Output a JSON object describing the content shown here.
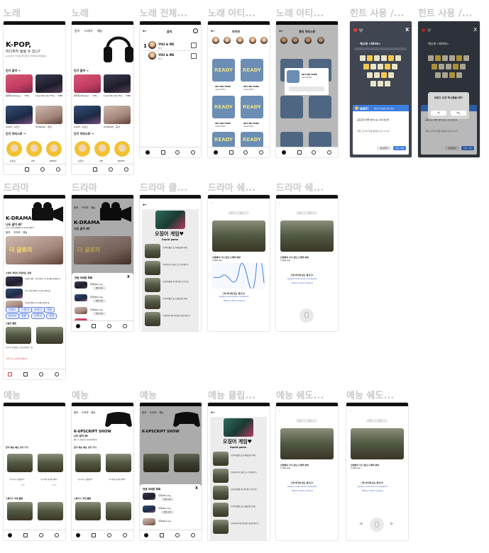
{
  "labels": {
    "r1": [
      "노래",
      "노래",
      "노래 전체...",
      "노래 아티...",
      "노래 아티...",
      "힌트 사용 /...",
      "힌트 사용 /..."
    ],
    "r2": [
      "드라마",
      "드라마",
      "드라마 클...",
      "드라마 쉐...",
      "드라마 쉐..."
    ],
    "r3": [
      "예능",
      "예능",
      "예능",
      "예능 클립...",
      "예능 쉐도...",
      "예능 쉐도..."
    ]
  },
  "nav": {
    "music": "음악",
    "drama": "드라마",
    "variety": "예능"
  },
  "music_home": {
    "title": "K-POP,",
    "subtitle": "어디까지 들을 수 있니?",
    "hint": "► K-POP 가사를 들으면서 한국어를 배워봐요",
    "section_songs": "인기 음악 →",
    "songs": [
      "알러지(Allergy) - 「IVE」",
      "Love Me Like This - 「NMIXX」",
      "GODS - 뉴진스",
      "STORAGE - 준비"
    ],
    "section_artists": "인기 아티스트 →",
    "artists": [
      "뉴진스",
      "IVE",
      "NMIXX"
    ]
  },
  "song_list": {
    "header": "음악",
    "items": [
      {
        "rank": "1",
        "title": "YOU & ME",
        "artist": "제니"
      },
      {
        "rank": "",
        "title": "YOU & ME",
        "artist": "제니"
      }
    ]
  },
  "artist_page": {
    "header": "아이브",
    "header_dim": "관리 아티스트",
    "album_art": "READY",
    "album_title": "SET ME FREE",
    "album_sub": "TWICE(트와이스)"
  },
  "hint_game": {
    "close": "X",
    "title": "에스파 <Girls>",
    "hint_label": "HINT!",
    "hint_desc": "정답 중 하나를 보여드려요",
    "lyric": "공포같은 밤을 벗어나는 나의 에스파",
    "lyric2": "어떤 고기의 다른 계획이 도저 사 서?",
    "use_button": "한트 사용",
    "skip_button": "건너뛰기",
    "popup_title": "라운드 도전 하시겠습니까?",
    "popup_no": "네",
    "popup_yes": "아뇨"
  },
  "drama_home": {
    "title": "K-DRAMA",
    "subtitle": "나도 같이 봐!",
    "desc": "한국 드라마 명장면으로 한국어 배우기",
    "hero_text": "더 글로리",
    "section": "오징어 게임이 추천하는 장면",
    "items": [
      "오징어 게임 : 덕지 없이 다시 경기를 진행합니다",
      "우리 사이 어떤가? 자꾸만 생각나요",
      "고아원 원장 이 지구를 지켜야 해"
    ],
    "chips": [
      "로맨스",
      "스릴러",
      "코미디",
      "액션",
      "판타지",
      "청춘",
      "가족극",
      "의학"
    ],
    "section2": "오늘의 클립",
    "clip_captions": [
      "눈이 두 번 멈추는 순간 반응하는 \"천사 이 한다구\"",
      "\"내가 다 고치면 되잖아!\""
    ]
  },
  "drama_sheet": {
    "title": "연습 마라톤 목록",
    "close": "X",
    "item": "주제(Moving",
    "btn": "연습 하기"
  },
  "squid": {
    "title": "오징어 게임♥",
    "subtitle": "Squid game",
    "clip_lines": [
      "(오제석)빨간 불 초록불 빨리 해요",
      "(오제석)누가 일번 초소 이동합니다",
      "(오제석)정말 아니면 해요 이 웃기는",
      "(오제석)빨간 불 초록불 빨리 해요",
      "(오제석)이 정도면 빨리 하셨는데요 돈"
    ]
  },
  "shadowing": {
    "toggle_a": "자막",
    "toggle_b": "실전",
    "sentence": "인생에서 다시 만난 도깨비 부부",
    "sentence_sub": "(도깨비 대사)",
    "question": "그게 어디에 있는 회사고?",
    "romanized": "geugeo eodie issneun hoesagoe?",
    "translation": "Where is that company?"
  },
  "variety_home": {
    "title": "K-UPSCRIPT SHOW",
    "subtitle": "나도 같이 봐!",
    "desc": "예능 속 표현으로 한국어 배우기",
    "section": "한국 예능 예능 보러 가기",
    "captions": [
      "\"내 다리 다 잘랐어!\"",
      "\"나 이런 데 처음 와봐\""
    ],
    "meta": [
      "런닝맨",
      "1박2일"
    ],
    "section2": "스튜디오 추천 클립"
  },
  "colors": {
    "accent_red": "#e23a3a",
    "accent_blue": "#3458c8",
    "hint_blue": "#3d7ee0",
    "game_dark": "#3f4651",
    "popup_bg": "#d6d6d6"
  }
}
